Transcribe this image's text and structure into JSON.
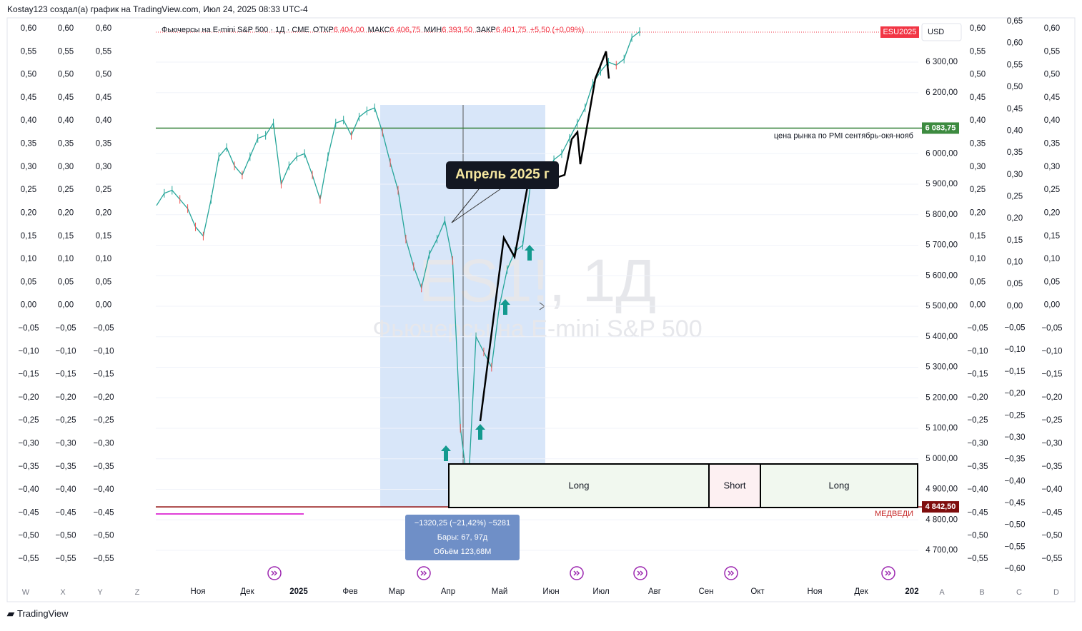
{
  "header": {
    "caption": "Kostay123 создал(а) график на TradingView.com, Июл 24, 2025 08:33 UTC-4"
  },
  "legend": {
    "symbol": "Фьючерсы на E-mini S&P 500 · 1Д · CME",
    "open_label": "ОТКР",
    "open": "6 404,00",
    "high_label": "МАКС",
    "high": "6 406,75",
    "low_label": "МИН",
    "low": "6 393,50",
    "close_label": "ЗАКР",
    "close": "6 401,75",
    "change": "+5,50 (+0,09%)"
  },
  "watermark": {
    "ticker": "ES1!, 1Д",
    "name": "Фьючерсы на E-mini S&P 500"
  },
  "chart": {
    "type": "line",
    "closes": [
      5830,
      5870,
      5880,
      5850,
      5820,
      5760,
      5730,
      5850,
      5990,
      6020,
      5960,
      5930,
      5990,
      6050,
      6060,
      6100,
      5900,
      5960,
      5990,
      6000,
      5930,
      5850,
      5990,
      6100,
      6110,
      6060,
      6120,
      6140,
      6150,
      6070,
      5970,
      5880,
      5720,
      5630,
      5560,
      5670,
      5720,
      5780,
      5650,
      5100,
      4900,
      5400,
      5350,
      5300,
      5500,
      5620,
      5680,
      5700,
      5900,
      5950,
      5930,
      5980,
      6000,
      6050,
      6100,
      6150,
      6230,
      6270,
      6300,
      6290,
      6310,
      6380,
      6400
    ],
    "ylim": [
      4620,
      6420
    ],
    "yticks": [
      {
        "value": 6300,
        "label": "6 300,00"
      },
      {
        "value": 6200,
        "label": "6 200,00"
      },
      {
        "value": 6000,
        "label": "6 000,00"
      },
      {
        "value": 5900,
        "label": "5 900,00"
      },
      {
        "value": 5800,
        "label": "5 800,00"
      },
      {
        "value": 5700,
        "label": "5 700,00"
      },
      {
        "value": 5600,
        "label": "5 600,00"
      },
      {
        "value": 5500,
        "label": "5 500,00"
      },
      {
        "value": 5400,
        "label": "5 400,00"
      },
      {
        "value": 5300,
        "label": "5 300,00"
      },
      {
        "value": 5200,
        "label": "5 200,00"
      },
      {
        "value": 5100,
        "label": "5 100,00"
      },
      {
        "value": 5000,
        "label": "5 000,00"
      },
      {
        "value": 4900,
        "label": "4 900,00"
      },
      {
        "value": 4800,
        "label": "4 800,00"
      },
      {
        "value": 4700,
        "label": "4 700,00"
      }
    ],
    "months": [
      "Ноя",
      "Дек",
      "2025",
      "Фев",
      "Мар",
      "Апр",
      "Май",
      "Июн",
      "Июл",
      "Авг",
      "Сен",
      "Окт",
      "Ноя",
      "Дек",
      "202"
    ],
    "currency": "USD",
    "contract": "ESU2025",
    "pmi_line": {
      "value": 6083.75,
      "label": "6 083,75",
      "text": "цена рынка по PMI сентябрь-окя-нояб"
    },
    "bear_line": {
      "value": 4842.5,
      "label": "4 842,50",
      "text": "МЕДВЕДИ"
    }
  },
  "scale_a": [
    "0,60",
    "0,55",
    "0,50",
    "0,45",
    "0,40",
    "0,35",
    "0,30",
    "0,25",
    "0,20",
    "0,15",
    "0,10",
    "0,05",
    "0,00",
    "−0,05",
    "−0,10",
    "−0,15",
    "−0,20",
    "−0,25",
    "−0,30",
    "−0,35",
    "−0,40",
    "−0,45",
    "−0,50",
    "−0,55"
  ],
  "scale_b": [
    "0,65",
    "0,60",
    "0,55",
    "0,50",
    "0,45",
    "0,40",
    "0,35",
    "0,30",
    "0,25",
    "0,20",
    "0,15",
    "0,10",
    "0,05",
    "0,00",
    "−0,05",
    "−0,10",
    "−0,15",
    "−0,20",
    "−0,25",
    "−0,30",
    "−0,35",
    "−0,40",
    "−0,45",
    "−0,50",
    "−0,55",
    "−0,60"
  ],
  "pane_letters_left": [
    "W",
    "X",
    "Y",
    "Z"
  ],
  "pane_letters_right": [
    "A",
    "B",
    "C",
    "D"
  ],
  "callout": "Апрель 2025 г",
  "zones": [
    "Long",
    "Short",
    "Long"
  ],
  "measure": {
    "line1": "−1320,25 (−21,42%) −5281",
    "line2": "Бары: 67, 97д",
    "line3": "Объём 123,68M"
  },
  "footer": {
    "brand": "TradingView"
  }
}
